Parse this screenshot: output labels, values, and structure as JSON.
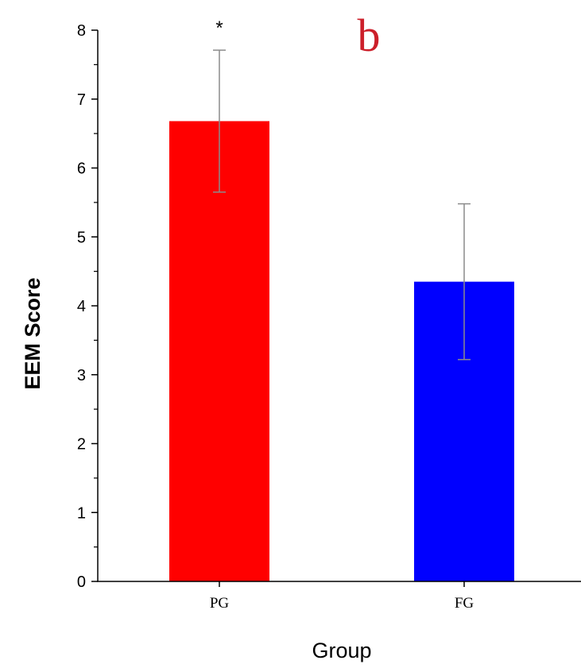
{
  "panel_label": "b",
  "chart_data": {
    "type": "bar",
    "categories": [
      "PG",
      "FG"
    ],
    "values": [
      6.68,
      4.35
    ],
    "error_bars": [
      1.03,
      1.13
    ],
    "annotations": [
      "*",
      ""
    ],
    "bar_colors": [
      "#ff0000",
      "#0000ff"
    ],
    "title": "",
    "xlabel": "Group",
    "ylabel": "EEM Score",
    "ylim": [
      0,
      8
    ],
    "yticks": [
      0,
      1,
      2,
      3,
      4,
      5,
      6,
      7,
      8
    ],
    "grid": false,
    "legend": "none"
  }
}
